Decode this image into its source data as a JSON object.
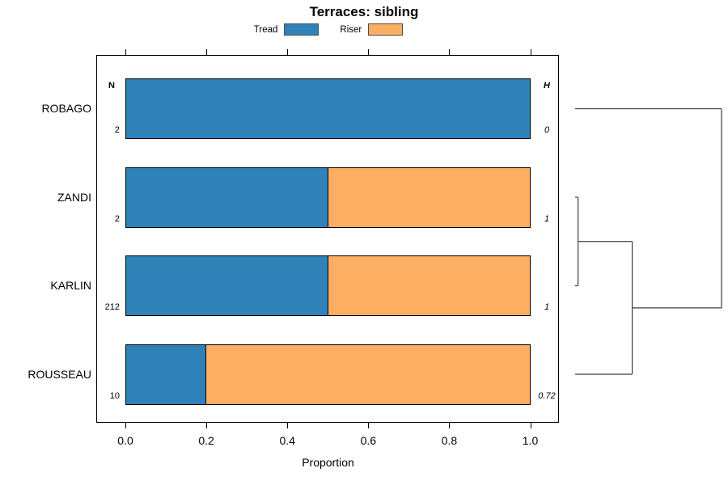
{
  "chart_data": {
    "type": "bar",
    "orientation": "horizontal",
    "stacked": true,
    "title": "Terraces: sibling",
    "categories": [
      "ROBAGO",
      "ZANDI",
      "KARLIN",
      "ROUSSEAU"
    ],
    "series": [
      {
        "name": "Tread",
        "color": "#2E82B8",
        "values": [
          1.0,
          0.5,
          0.5,
          0.2
        ]
      },
      {
        "name": "Riser",
        "color": "#FCAE63",
        "values": [
          0.0,
          0.5,
          0.5,
          0.8
        ]
      }
    ],
    "annotations": {
      "N": {
        "header": "N",
        "position": "left-inside",
        "values": [
          "2",
          "2",
          "212",
          "10"
        ]
      },
      "H": {
        "header": "H",
        "position": "right-inside",
        "values": [
          "0",
          "1",
          "1",
          "0.72"
        ]
      }
    },
    "xlabel": "Proportion",
    "ylabel": "",
    "xlim": [
      0,
      1
    ],
    "x_ticks": [
      0.0,
      0.2,
      0.4,
      0.6,
      0.8,
      1.0
    ],
    "grid": false,
    "legend_position": "top",
    "dendrogram": {
      "position": "right",
      "tree": {
        "height": 1.0,
        "children": [
          {
            "leaf": "ROBAGO"
          },
          {
            "height": 0.39,
            "children": [
              {
                "height": 0.02,
                "children": [
                  {
                    "leaf": "ZANDI"
                  },
                  {
                    "leaf": "KARLIN"
                  }
                ]
              },
              {
                "leaf": "ROUSSEAU"
              }
            ]
          }
        ]
      }
    }
  }
}
